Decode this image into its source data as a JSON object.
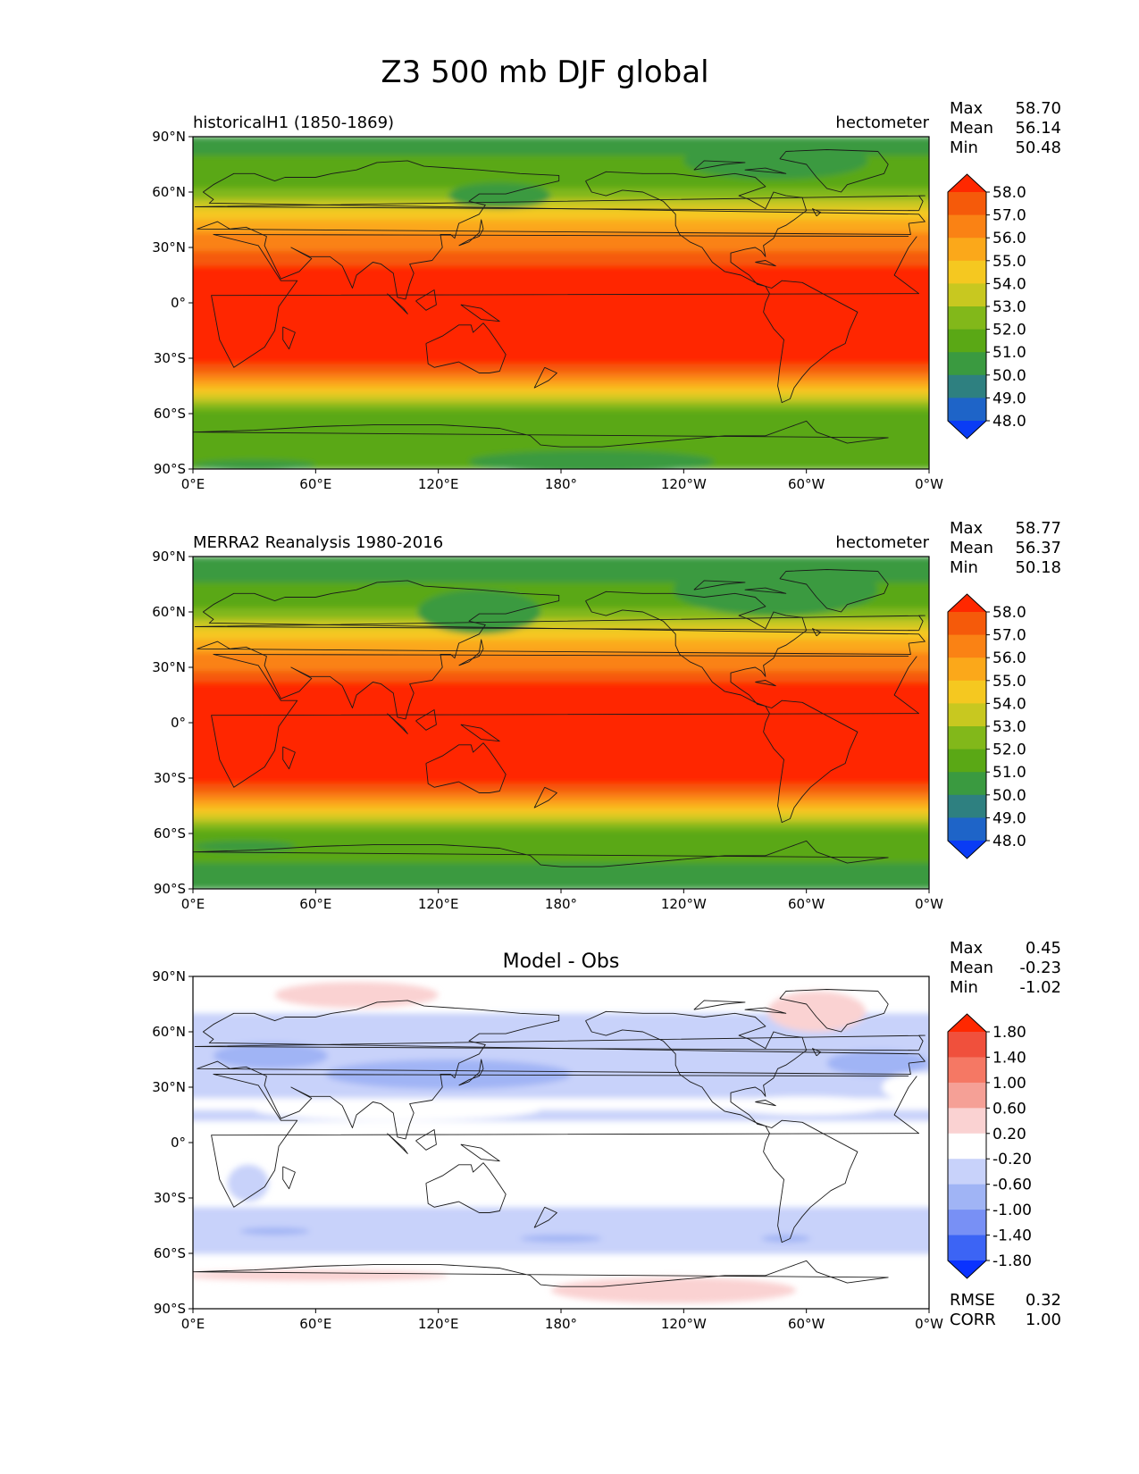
{
  "title": "Z3 500 mb DJF global",
  "chart_data": [
    {
      "type": "heatmap",
      "panel": "test",
      "left_title": "historicalH1 (1850-1869)",
      "center_title": "",
      "units": "hectometer",
      "stats": [
        {
          "label": "Max",
          "value": "58.70"
        },
        {
          "label": "Mean",
          "value": "56.14"
        },
        {
          "label": "Min",
          "value": "50.48"
        }
      ],
      "x_ticks": [
        "0°E",
        "60°E",
        "120°E",
        "180°",
        "120°W",
        "60°W",
        "0°W"
      ],
      "y_ticks": [
        "90°N",
        "60°N",
        "30°N",
        "0°",
        "30°S",
        "60°S",
        "90°S"
      ],
      "xlim": [
        0,
        360
      ],
      "ylim": [
        -90,
        90
      ],
      "colorbar": {
        "labels": [
          "48.0",
          "49.0",
          "50.0",
          "51.0",
          "52.0",
          "53.0",
          "54.0",
          "55.0",
          "56.0",
          "57.0",
          "58.0"
        ],
        "colors": [
          "#0a3cf5",
          "#1e64c8",
          "#2e8080",
          "#3a9a40",
          "#5aa815",
          "#82b81a",
          "#c8c820",
          "#f5c820",
          "#fba81a",
          "#fa8214",
          "#f55a0a",
          "#ff2800"
        ]
      },
      "bands": [
        {
          "color": "#3a9a40",
          "lat_top": 90,
          "lat_bottom": 80
        },
        {
          "color": "#5aa815",
          "lat_top": 80,
          "lat_bottom": 62
        },
        {
          "color": "#82b81a",
          "lat_top": 62,
          "lat_bottom": 56
        },
        {
          "color": "#c8c820",
          "lat_top": 56,
          "lat_bottom": 51
        },
        {
          "color": "#f5c820",
          "lat_top": 51,
          "lat_bottom": 45
        },
        {
          "color": "#fba81a",
          "lat_top": 45,
          "lat_bottom": 38
        },
        {
          "color": "#fa8214",
          "lat_top": 38,
          "lat_bottom": 28
        },
        {
          "color": "#f55a0a",
          "lat_top": 28,
          "lat_bottom": 20
        },
        {
          "color": "#ff2800",
          "lat_top": 20,
          "lat_bottom": -33
        },
        {
          "color": "#f55a0a",
          "lat_top": -33,
          "lat_bottom": -38
        },
        {
          "color": "#fa8214",
          "lat_top": -38,
          "lat_bottom": -42
        },
        {
          "color": "#fba81a",
          "lat_top": -42,
          "lat_bottom": -46
        },
        {
          "color": "#f5c820",
          "lat_top": -46,
          "lat_bottom": -50
        },
        {
          "color": "#c8c820",
          "lat_top": -50,
          "lat_bottom": -54
        },
        {
          "color": "#82b81a",
          "lat_top": -54,
          "lat_bottom": -58
        },
        {
          "color": "#5aa815",
          "lat_top": -58,
          "lat_bottom": -90
        }
      ],
      "patches": [
        {
          "color": "#3a9a40",
          "lon": 150,
          "lat": 58,
          "rlon": 25,
          "rlat": 7
        },
        {
          "color": "#3a9a40",
          "lon": 285,
          "lat": 77,
          "rlon": 45,
          "rlat": 10
        },
        {
          "color": "#3a9a40",
          "lon": 195,
          "lat": -86,
          "rlon": 60,
          "rlat": 6
        },
        {
          "color": "#3a9a40",
          "lon": 30,
          "lat": -88,
          "rlon": 30,
          "rlat": 3
        }
      ]
    },
    {
      "type": "heatmap",
      "panel": "reference",
      "left_title": "MERRA2 Reanalysis 1980-2016",
      "center_title": "",
      "units": "hectometer",
      "stats": [
        {
          "label": "Max",
          "value": "58.77"
        },
        {
          "label": "Mean",
          "value": "56.37"
        },
        {
          "label": "Min",
          "value": "50.18"
        }
      ],
      "x_ticks": [
        "0°E",
        "60°E",
        "120°E",
        "180°",
        "120°W",
        "60°W",
        "0°W"
      ],
      "y_ticks": [
        "90°N",
        "60°N",
        "30°N",
        "0°",
        "30°S",
        "60°S",
        "90°S"
      ],
      "xlim": [
        0,
        360
      ],
      "ylim": [
        -90,
        90
      ],
      "colorbar": {
        "labels": [
          "48.0",
          "49.0",
          "50.0",
          "51.0",
          "52.0",
          "53.0",
          "54.0",
          "55.0",
          "56.0",
          "57.0",
          "58.0"
        ],
        "colors": [
          "#0a3cf5",
          "#1e64c8",
          "#2e8080",
          "#3a9a40",
          "#5aa815",
          "#82b81a",
          "#c8c820",
          "#f5c820",
          "#fba81a",
          "#fa8214",
          "#f55a0a",
          "#ff2800"
        ]
      },
      "bands": [
        {
          "color": "#3a9a40",
          "lat_top": 90,
          "lat_bottom": 76
        },
        {
          "color": "#5aa815",
          "lat_top": 76,
          "lat_bottom": 62
        },
        {
          "color": "#82b81a",
          "lat_top": 62,
          "lat_bottom": 56
        },
        {
          "color": "#c8c820",
          "lat_top": 56,
          "lat_bottom": 51
        },
        {
          "color": "#f5c820",
          "lat_top": 51,
          "lat_bottom": 45
        },
        {
          "color": "#fba81a",
          "lat_top": 45,
          "lat_bottom": 38
        },
        {
          "color": "#fa8214",
          "lat_top": 38,
          "lat_bottom": 28
        },
        {
          "color": "#f55a0a",
          "lat_top": 28,
          "lat_bottom": 22
        },
        {
          "color": "#ff2800",
          "lat_top": 22,
          "lat_bottom": -33
        },
        {
          "color": "#f55a0a",
          "lat_top": -33,
          "lat_bottom": -38
        },
        {
          "color": "#fa8214",
          "lat_top": -38,
          "lat_bottom": -42
        },
        {
          "color": "#fba81a",
          "lat_top": -42,
          "lat_bottom": -46
        },
        {
          "color": "#f5c820",
          "lat_top": -46,
          "lat_bottom": -50
        },
        {
          "color": "#c8c820",
          "lat_top": -50,
          "lat_bottom": -54
        },
        {
          "color": "#82b81a",
          "lat_top": -54,
          "lat_bottom": -58
        },
        {
          "color": "#5aa815",
          "lat_top": -58,
          "lat_bottom": -76
        },
        {
          "color": "#3a9a40",
          "lat_top": -76,
          "lat_bottom": -90
        }
      ],
      "patches": [
        {
          "color": "#3a9a40",
          "lon": 140,
          "lat": 60,
          "rlon": 30,
          "rlat": 12
        },
        {
          "color": "#3a9a40",
          "lon": 285,
          "lat": 72,
          "rlon": 50,
          "rlat": 14
        },
        {
          "color": "#3a9a40",
          "lon": 25,
          "lat": -67,
          "rlon": 25,
          "rlat": 3
        }
      ]
    },
    {
      "type": "heatmap",
      "panel": "difference",
      "left_title": "",
      "center_title": "Model - Obs",
      "units": "",
      "stats": [
        {
          "label": "Max",
          "value": "0.45"
        },
        {
          "label": "Mean",
          "value": "-0.23"
        },
        {
          "label": "Min",
          "value": "-1.02"
        }
      ],
      "extra_stats": [
        {
          "label": "RMSE",
          "value": "0.32"
        },
        {
          "label": "CORR",
          "value": "1.00"
        }
      ],
      "x_ticks": [
        "0°E",
        "60°E",
        "120°E",
        "180°",
        "120°W",
        "60°W",
        "0°W"
      ],
      "y_ticks": [
        "90°N",
        "60°N",
        "30°N",
        "0°",
        "30°S",
        "60°S",
        "90°S"
      ],
      "xlim": [
        0,
        360
      ],
      "ylim": [
        -90,
        90
      ],
      "colorbar": {
        "labels": [
          "-1.80",
          "-1.40",
          "-1.00",
          "-0.60",
          "-0.20",
          "0.20",
          "0.60",
          "1.00",
          "1.40",
          "1.80"
        ],
        "colors": [
          "#0a32ff",
          "#3c64f5",
          "#7890f5",
          "#a0b4f5",
          "#c8d2fa",
          "#ffffff",
          "#fad2d2",
          "#f5a096",
          "#f57864",
          "#f0503c",
          "#ff2800"
        ]
      },
      "bands": [
        {
          "color": "#c8d2fa",
          "lat_top": 70,
          "lat_bottom": 12
        },
        {
          "color": "#ffffff",
          "lat_top": 24,
          "lat_bottom": 18
        },
        {
          "color": "#c8d2fa",
          "lat_top": -35,
          "lat_bottom": -60
        }
      ],
      "patches": [
        {
          "color": "#ffffff",
          "lon": 100,
          "lat": 18,
          "rlon": 70,
          "rlat": 6
        },
        {
          "color": "#ffffff",
          "lon": 300,
          "lat": 20,
          "rlon": 40,
          "rlat": 5
        },
        {
          "color": "#ffffff",
          "lon": 355,
          "lat": 30,
          "rlon": 18,
          "rlat": 8
        },
        {
          "color": "#a0b4f5",
          "lon": 38,
          "lat": 47,
          "rlon": 28,
          "rlat": 7
        },
        {
          "color": "#a0b4f5",
          "lon": 125,
          "lat": 37,
          "rlon": 60,
          "rlat": 8
        },
        {
          "color": "#a0b4f5",
          "lon": 335,
          "lat": 43,
          "rlon": 25,
          "rlat": 7
        },
        {
          "color": "#c8d2fa",
          "lon": 27,
          "lat": -22,
          "rlon": 10,
          "rlat": 10
        },
        {
          "color": "#a0b4f5",
          "lon": 40,
          "lat": -48,
          "rlon": 17,
          "rlat": 2
        },
        {
          "color": "#a0b4f5",
          "lon": 180,
          "lat": -52,
          "rlon": 20,
          "rlat": 2
        },
        {
          "color": "#a0b4f5",
          "lon": 290,
          "lat": -52,
          "rlon": 12,
          "rlat": 2
        },
        {
          "color": "#fad2d2",
          "lon": 80,
          "lat": 80,
          "rlon": 40,
          "rlat": 7
        },
        {
          "color": "#fad2d2",
          "lon": 305,
          "lat": 71,
          "rlon": 24,
          "rlat": 11
        },
        {
          "color": "#fad2d2",
          "lon": 60,
          "lat": -72,
          "rlon": 65,
          "rlat": 3
        },
        {
          "color": "#fad2d2",
          "lon": 235,
          "lat": -80,
          "rlon": 60,
          "rlat": 7
        }
      ]
    }
  ]
}
